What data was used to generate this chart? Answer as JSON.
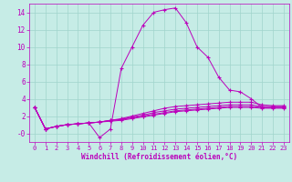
{
  "xlabel": "Windchill (Refroidissement éolien,°C)",
  "bg_color": "#c6ece6",
  "grid_color": "#a0d4cc",
  "line_color": "#bb00bb",
  "xlim": [
    -0.5,
    23.5
  ],
  "ylim": [
    -1.0,
    15.0
  ],
  "xticks": [
    0,
    1,
    2,
    3,
    4,
    5,
    6,
    7,
    8,
    9,
    10,
    11,
    12,
    13,
    14,
    15,
    16,
    17,
    18,
    19,
    20,
    21,
    22,
    23
  ],
  "yticks": [
    0,
    2,
    4,
    6,
    8,
    10,
    12,
    14
  ],
  "ytick_labels": [
    "-0",
    "2",
    "4",
    "6",
    "8",
    "10",
    "12",
    "14"
  ],
  "series": [
    [
      3.0,
      0.5,
      0.8,
      1.0,
      1.1,
      1.2,
      -0.5,
      0.5,
      7.5,
      10.0,
      12.5,
      14.0,
      14.3,
      14.5,
      12.8,
      10.0,
      8.8,
      6.5,
      5.0,
      4.8,
      4.0,
      3.0,
      3.0,
      3.0
    ],
    [
      3.0,
      0.5,
      0.8,
      1.0,
      1.1,
      1.2,
      1.3,
      1.5,
      1.7,
      2.0,
      2.3,
      2.6,
      2.9,
      3.1,
      3.2,
      3.3,
      3.4,
      3.5,
      3.6,
      3.6,
      3.6,
      3.3,
      3.2,
      3.2
    ],
    [
      3.0,
      0.5,
      0.8,
      1.0,
      1.1,
      1.2,
      1.3,
      1.5,
      1.6,
      1.9,
      2.1,
      2.4,
      2.6,
      2.8,
      2.9,
      3.0,
      3.1,
      3.2,
      3.3,
      3.3,
      3.3,
      3.1,
      3.1,
      3.1
    ],
    [
      3.0,
      0.5,
      0.8,
      1.0,
      1.1,
      1.2,
      1.3,
      1.5,
      1.6,
      1.8,
      2.0,
      2.2,
      2.4,
      2.6,
      2.7,
      2.8,
      2.9,
      3.0,
      3.1,
      3.1,
      3.1,
      3.0,
      3.0,
      3.0
    ],
    [
      3.0,
      0.5,
      0.8,
      1.0,
      1.1,
      1.2,
      1.3,
      1.4,
      1.5,
      1.7,
      1.9,
      2.1,
      2.3,
      2.5,
      2.6,
      2.7,
      2.8,
      2.9,
      3.0,
      3.0,
      3.0,
      2.9,
      2.9,
      2.9
    ]
  ],
  "tick_fontsize": 5.0,
  "xlabel_fontsize": 5.5
}
